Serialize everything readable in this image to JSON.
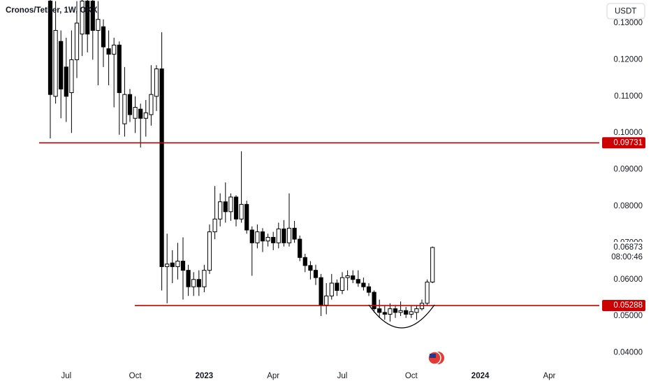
{
  "chart_data": {
    "type": "candlestick",
    "title": "Cronos/Tether, 1W, OKX",
    "currency": "USDT",
    "countdown": "08:00:46",
    "up_color": "#ffffff",
    "down_color": "#000000",
    "line_color": "#cc0000",
    "categories": [
      null,
      null,
      null,
      "Jul",
      null,
      null,
      null,
      null,
      null,
      null,
      null,
      null,
      null,
      null,
      null,
      null,
      "Oct",
      null,
      null,
      null,
      null,
      null,
      null,
      null,
      null,
      null,
      null,
      null,
      null,
      "2023",
      null,
      null,
      null,
      null,
      null,
      null,
      null,
      null,
      null,
      null,
      null,
      null,
      "Apr",
      null,
      null,
      null,
      null,
      null,
      null,
      null,
      null,
      null,
      null,
      null,
      null,
      "Jul",
      null,
      null,
      null,
      null,
      null,
      null,
      null,
      null,
      null,
      null,
      null,
      null,
      "Oct",
      null,
      null,
      null,
      null,
      null,
      null,
      null,
      null,
      null,
      null,
      null,
      null,
      "2024",
      null,
      null,
      null,
      null,
      null,
      null,
      null,
      null,
      null,
      null,
      null,
      null,
      "Apr"
    ],
    "open": [
      0.136,
      0.11,
      0.125,
      0.118,
      0.111,
      0.12,
      0.127,
      0.136,
      0.136,
      0.128,
      0.129,
      0.123,
      0.1215,
      0.124,
      0.1025,
      0.1105,
      0.104,
      0.1065,
      0.104,
      0.105,
      0.11,
      0.1175,
      0.0635,
      0.0645,
      0.0635,
      0.065,
      0.0625,
      0.058,
      0.06,
      0.058,
      0.0625,
      0.073,
      0.0765,
      0.0812,
      0.0785,
      0.0825,
      0.0765,
      0.0805,
      0.0735,
      0.07,
      0.073,
      0.0705,
      0.0715,
      0.07,
      0.0738,
      0.07,
      0.074,
      0.071,
      0.066,
      0.0638,
      0.0625,
      0.0605,
      0.053,
      0.0555,
      0.059,
      0.057,
      0.0605,
      0.061,
      0.06,
      0.059,
      0.058,
      0.0565,
      0.052,
      0.051,
      0.0505,
      0.052,
      0.051,
      0.0515,
      0.0505,
      0.051,
      0.052,
      0.0535,
      0.0593,
      null,
      null,
      null,
      null,
      null,
      null,
      null,
      null,
      null,
      null,
      null,
      null,
      null,
      null,
      null,
      null,
      null,
      null,
      null,
      null,
      null,
      null
    ],
    "high": [
      0.137,
      0.136,
      0.128,
      0.126,
      0.128,
      0.136,
      0.137,
      0.137,
      0.137,
      0.136,
      0.131,
      0.128,
      0.126,
      0.125,
      0.118,
      0.112,
      0.11,
      0.108,
      0.109,
      0.1185,
      0.1185,
      0.1275,
      0.0725,
      0.068,
      0.07,
      0.0715,
      0.064,
      0.062,
      0.0625,
      0.064,
      0.075,
      0.0855,
      0.0835,
      0.0865,
      0.0835,
      0.083,
      0.095,
      0.0815,
      0.0745,
      0.075,
      0.074,
      0.0725,
      0.073,
      0.0755,
      0.0762,
      0.0835,
      0.076,
      0.072,
      0.067,
      0.065,
      0.064,
      0.0615,
      0.059,
      0.0615,
      0.06,
      0.062,
      0.0625,
      0.0625,
      0.0625,
      0.0605,
      0.059,
      0.057,
      0.0545,
      0.053,
      0.0535,
      0.053,
      0.054,
      0.0525,
      0.053,
      0.053,
      0.0545,
      0.06,
      0.069,
      null,
      null,
      null,
      null,
      null,
      null,
      null,
      null,
      null,
      null,
      null,
      null,
      null,
      null,
      null,
      null,
      null,
      null,
      null,
      null,
      null,
      null
    ],
    "low": [
      0.0985,
      0.108,
      0.104,
      0.103,
      0.1,
      0.115,
      0.121,
      0.122,
      0.12,
      0.113,
      0.118,
      0.113,
      0.107,
      0.0995,
      0.099,
      0.103,
      0.1,
      0.096,
      0.099,
      0.102,
      0.106,
      0.057,
      0.0535,
      0.059,
      0.06,
      0.0545,
      0.0555,
      0.0555,
      0.0555,
      0.0565,
      0.0615,
      0.071,
      0.0745,
      0.0755,
      0.076,
      0.0745,
      0.0755,
      0.0725,
      0.061,
      0.0685,
      0.0675,
      0.069,
      0.068,
      0.0685,
      0.069,
      0.069,
      0.07,
      0.065,
      0.062,
      0.06,
      0.0585,
      0.05,
      0.0505,
      0.0545,
      0.0555,
      0.056,
      0.057,
      0.059,
      0.058,
      0.057,
      0.0555,
      0.051,
      0.0495,
      0.049,
      0.0485,
      0.0495,
      0.05,
      0.0495,
      0.0495,
      0.049,
      0.0515,
      0.053,
      0.059,
      null,
      null,
      null,
      null,
      null,
      null,
      null,
      null,
      null,
      null,
      null,
      null,
      null,
      null,
      null,
      null,
      null,
      null,
      null,
      null,
      null,
      null
    ],
    "close": [
      0.1105,
      0.128,
      0.112,
      0.11,
      0.12,
      0.13,
      0.136,
      0.127,
      0.128,
      0.131,
      0.1235,
      0.1215,
      0.124,
      0.111,
      0.1105,
      0.105,
      0.107,
      0.104,
      0.1055,
      0.1105,
      0.1175,
      0.0635,
      0.0642,
      0.0635,
      0.065,
      0.0625,
      0.058,
      0.06,
      0.058,
      0.0625,
      0.073,
      0.0765,
      0.0812,
      0.0785,
      0.0825,
      0.0765,
      0.0805,
      0.0735,
      0.07,
      0.073,
      0.0705,
      0.0715,
      0.07,
      0.0738,
      0.07,
      0.074,
      0.071,
      0.066,
      0.0638,
      0.0625,
      0.0605,
      0.053,
      0.0555,
      0.059,
      0.057,
      0.0605,
      0.061,
      0.06,
      0.059,
      0.058,
      0.0565,
      0.052,
      0.051,
      0.0505,
      0.052,
      0.051,
      0.0515,
      0.0505,
      0.0512,
      0.052,
      0.0535,
      0.0593,
      0.06873,
      null,
      null,
      null,
      null,
      null,
      null,
      null,
      null,
      null,
      null,
      null,
      null,
      null,
      null,
      null,
      null,
      null,
      null,
      null,
      null,
      null,
      null
    ],
    "hlines": [
      0.09731,
      0.05288
    ],
    "ylim": [
      0.038,
      0.1363
    ],
    "yticks": [
      {
        "value": 0.04,
        "label": "0.04000"
      },
      {
        "value": 0.05,
        "label": "0.05000"
      },
      {
        "value": 0.06,
        "label": "0.06000"
      },
      {
        "value": 0.07,
        "label": "0.07000"
      },
      {
        "value": 0.08,
        "label": "0.08000"
      },
      {
        "value": 0.09,
        "label": "0.09000"
      },
      {
        "value": 0.1,
        "label": "0.10000"
      },
      {
        "value": 0.11,
        "label": "0.11000"
      },
      {
        "value": 0.12,
        "label": "0.12000"
      },
      {
        "value": 0.13,
        "label": "0.13000"
      }
    ]
  }
}
